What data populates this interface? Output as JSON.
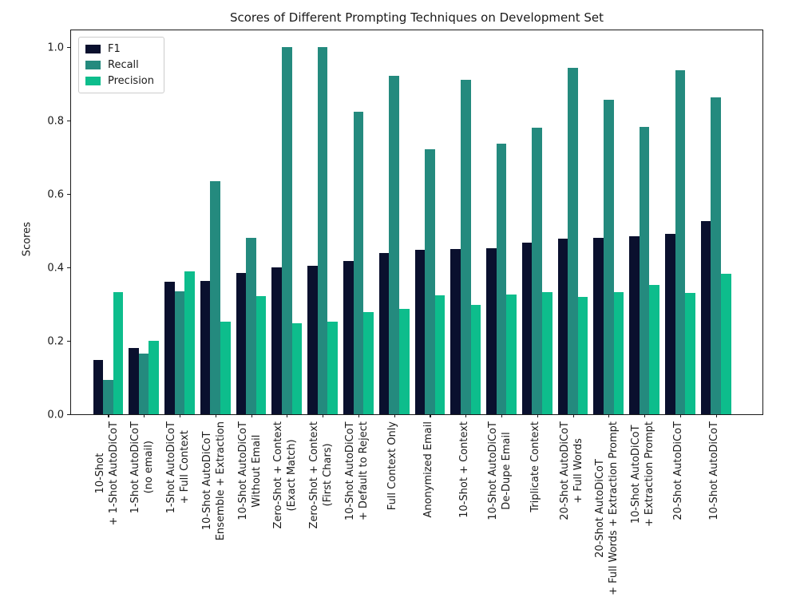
{
  "chart_data": {
    "type": "bar",
    "title": "Scores of Different Prompting Techniques on Development Set",
    "xlabel": "",
    "ylabel": "Scores",
    "ylim": [
      0.0,
      1.05
    ],
    "yticks": [
      0.0,
      0.2,
      0.4,
      0.6,
      0.8,
      1.0
    ],
    "grid": false,
    "legend_position": "upper left",
    "categories": [
      "10-Shot\n+ 1-Shot AutoDiCoT",
      "1-Shot AutoDiCoT\n(no email)",
      "1-Shot AutoDiCoT\n+ Full Context",
      "10-Shot AutoDiCoT\nEnsemble + Extraction",
      "10-Shot AutoDiCoT\nWithout Email",
      "Zero-Shot + Context\n(Exact Match)",
      "Zero-Shot + Context\n(First Chars)",
      "10-Shot AutoDiCoT\n+ Default to Reject",
      "Full Context Only",
      "Anonymized Email",
      "10-Shot + Context",
      "10-Shot AutoDiCoT\nDe-Dupe Email",
      "Triplicate Context",
      "20-Shot AutoDiCoT\n+ Full Words",
      "20-Shot AutoDiCoT\n+ Full Words + Extraction Prompt",
      "10-Shot AutoDiCoT\n+ Extraction Prompt",
      "20-Shot AutoDiCoT",
      "10-Shot AutoDiCoT"
    ],
    "series": [
      {
        "name": "F1",
        "color": "#0a102e",
        "values": [
          0.148,
          0.18,
          0.36,
          0.364,
          0.385,
          0.4,
          0.404,
          0.418,
          0.44,
          0.448,
          0.45,
          0.452,
          0.467,
          0.479,
          0.48,
          0.485,
          0.492,
          0.527
        ]
      },
      {
        "name": "Recall",
        "color": "#248a7e",
        "values": [
          0.094,
          0.165,
          0.334,
          0.635,
          0.48,
          1.0,
          1.0,
          0.825,
          0.922,
          0.722,
          0.91,
          0.737,
          0.781,
          0.943,
          0.857,
          0.782,
          0.938,
          0.864
        ]
      },
      {
        "name": "Precision",
        "color": "#0dbd8c",
        "values": [
          0.332,
          0.199,
          0.389,
          0.253,
          0.322,
          0.248,
          0.252,
          0.279,
          0.288,
          0.324,
          0.298,
          0.326,
          0.333,
          0.32,
          0.332,
          0.352,
          0.331,
          0.382
        ]
      }
    ]
  }
}
